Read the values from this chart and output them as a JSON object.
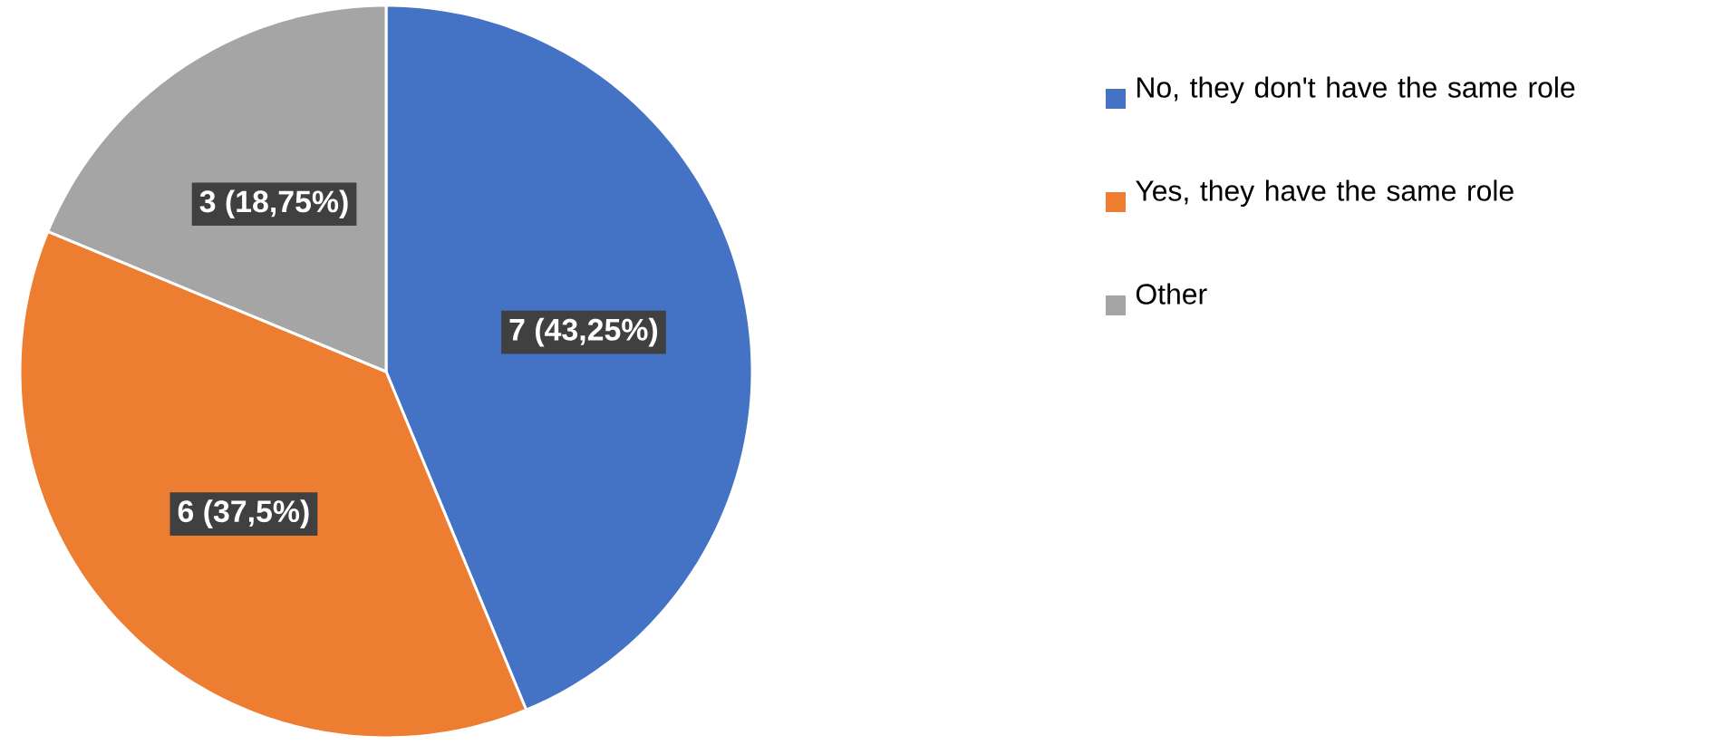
{
  "chart_data": {
    "type": "pie",
    "categories": [
      "No, they don't have the same role",
      "Yes, they have the same role",
      "Other"
    ],
    "values": [
      7,
      6,
      3
    ],
    "value_labels": [
      "7 (43,25%)",
      "6 (37,5%)",
      "3 (18,75%)"
    ],
    "colors": [
      "#4472c4",
      "#ed7d31",
      "#a5a5a5"
    ],
    "legend": "right"
  }
}
